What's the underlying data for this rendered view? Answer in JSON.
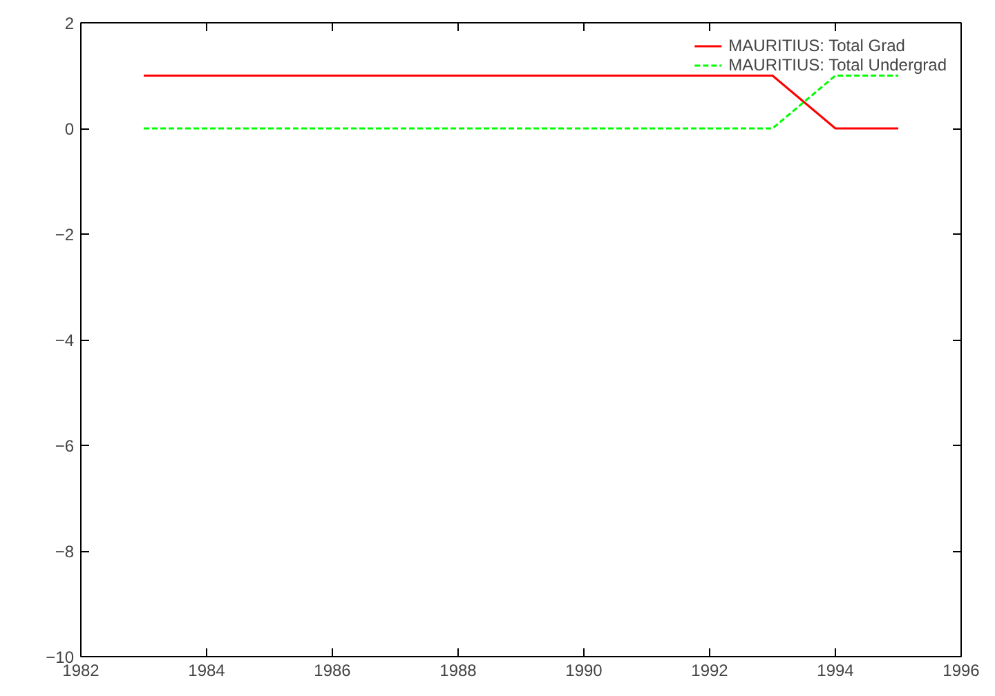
{
  "chart_data": {
    "type": "line",
    "x": [
      1983,
      1984,
      1985,
      1986,
      1987,
      1988,
      1989,
      1990,
      1991,
      1992,
      1993,
      1994,
      1995
    ],
    "series": [
      {
        "name": "MAURITIUS: Total Grad",
        "color": "#ff0000",
        "line_style": "solid",
        "values": [
          1,
          1,
          1,
          1,
          1,
          1,
          1,
          1,
          1,
          1,
          1,
          0,
          0
        ]
      },
      {
        "name": "MAURITIUS: Total Undergrad",
        "color": "#00ff00",
        "line_style": "dashed",
        "values": [
          0,
          0,
          0,
          0,
          0,
          0,
          0,
          0,
          0,
          0,
          0,
          1,
          1
        ]
      }
    ],
    "xlim": [
      1982,
      1996
    ],
    "xticks": [
      1982,
      1984,
      1986,
      1988,
      1990,
      1992,
      1994,
      1996
    ],
    "ylim": [
      -10,
      2
    ],
    "yticks": [
      -10,
      -8,
      -6,
      -4,
      -2,
      0,
      2
    ],
    "grid": false,
    "legend": "top right",
    "marker": "none"
  }
}
